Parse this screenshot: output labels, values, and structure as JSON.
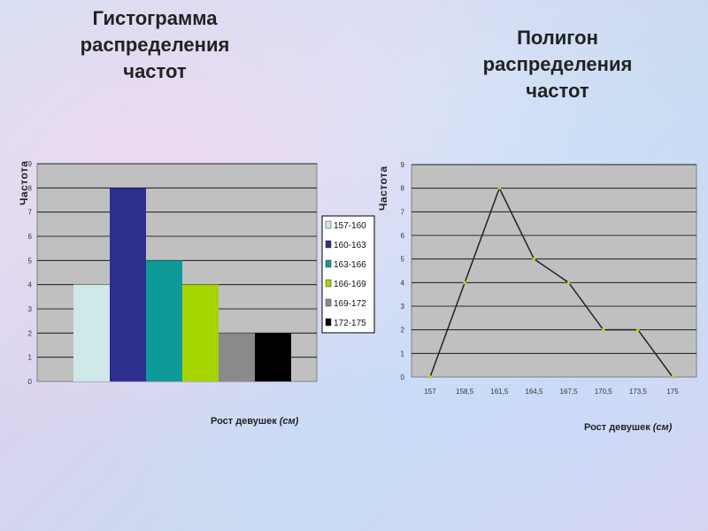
{
  "titles": {
    "histogram": "Гистограмма\nраспределения\nчастот",
    "polygon": "Полигон\nраспределения\nчастот"
  },
  "chart_data": [
    {
      "type": "bar",
      "title": "Гистограмма распределения частот",
      "ylabel": "Частота",
      "xlabel": "Рост девушек (см)",
      "ylim": [
        0,
        9
      ],
      "yticks": [
        0,
        1,
        2,
        3,
        4,
        5,
        6,
        7,
        8,
        9
      ],
      "grid": true,
      "legend_position": "right",
      "series": [
        {
          "name": "157-160",
          "values": [
            4
          ],
          "color": "#cfe8e8"
        },
        {
          "name": "160-163",
          "values": [
            8
          ],
          "color": "#2e2e8f"
        },
        {
          "name": "163-166",
          "values": [
            5
          ],
          "color": "#0f9a9a"
        },
        {
          "name": "166-169",
          "values": [
            4
          ],
          "color": "#a6d400"
        },
        {
          "name": "169-172",
          "values": [
            2
          ],
          "color": "#8a8a8a"
        },
        {
          "name": "172-175",
          "values": [
            2
          ],
          "color": "#000000"
        }
      ]
    },
    {
      "type": "line",
      "title": "Полигон распределения частот",
      "ylabel": "Частота",
      "xlabel": "Рост девушек (см)",
      "ylim": [
        0,
        9
      ],
      "yticks": [
        0,
        1,
        2,
        3,
        4,
        5,
        6,
        7,
        8,
        9
      ],
      "grid": true,
      "categories": [
        "157",
        "158,5",
        "161,5",
        "164,5",
        "167,5",
        "170,5",
        "173,5",
        "175"
      ],
      "series": [
        {
          "values": [
            0,
            4,
            8,
            5,
            4,
            2,
            2,
            0
          ],
          "color": "#222222",
          "marker_color": "#cccc00"
        }
      ]
    }
  ]
}
